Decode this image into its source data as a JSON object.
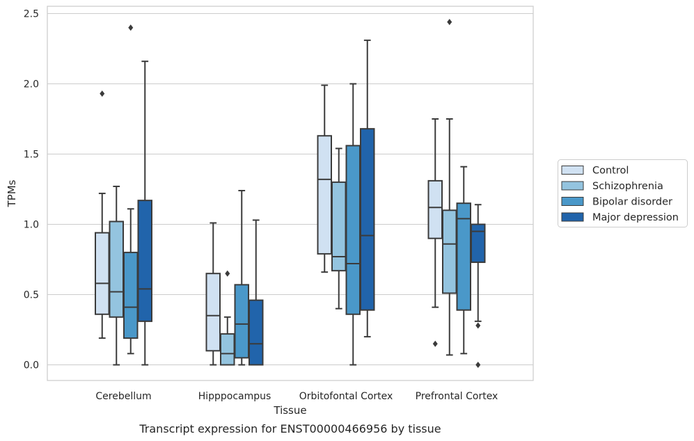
{
  "chart_data": {
    "type": "boxplot",
    "xlabel": "Tissue",
    "ylabel": "TPMs",
    "caption": "Transcript expression for ENST00000466956 by tissue",
    "ylim": [
      -0.12,
      2.57
    ],
    "yticks": [
      0.0,
      0.5,
      1.0,
      1.5,
      2.0,
      2.5
    ],
    "ytick_labels": [
      "0.0",
      "0.5",
      "1.0",
      "1.5",
      "2.0",
      "2.5"
    ],
    "grid": true,
    "legend_position": "right",
    "categories": [
      "Cerebellum",
      "Hipppocampus",
      "Orbitofontal Cortex",
      "Prefrontal Cortex"
    ],
    "series": [
      {
        "name": "Control",
        "color": "#d0e1f2",
        "boxes": [
          {
            "whislo": 0.19,
            "q1": 0.36,
            "med": 0.58,
            "q3": 0.94,
            "whishi": 1.22,
            "fliers": [
              1.93
            ]
          },
          {
            "whislo": 0.0,
            "q1": 0.1,
            "med": 0.35,
            "q3": 0.65,
            "whishi": 1.01,
            "fliers": []
          },
          {
            "whislo": 0.66,
            "q1": 0.79,
            "med": 1.32,
            "q3": 1.63,
            "whishi": 1.99,
            "fliers": []
          },
          {
            "whislo": 0.41,
            "q1": 0.9,
            "med": 1.12,
            "q3": 1.31,
            "whishi": 1.75,
            "fliers": [
              0.15
            ]
          }
        ]
      },
      {
        "name": "Schizophrenia",
        "color": "#94c4df",
        "boxes": [
          {
            "whislo": 0.0,
            "q1": 0.34,
            "med": 0.52,
            "q3": 1.02,
            "whishi": 1.27,
            "fliers": []
          },
          {
            "whislo": 0.0,
            "q1": 0.0,
            "med": 0.08,
            "q3": 0.22,
            "whishi": 0.34,
            "fliers": [
              0.65
            ]
          },
          {
            "whislo": 0.4,
            "q1": 0.67,
            "med": 0.77,
            "q3": 1.3,
            "whishi": 1.54,
            "fliers": []
          },
          {
            "whislo": 0.07,
            "q1": 0.51,
            "med": 0.86,
            "q3": 1.1,
            "whishi": 1.75,
            "fliers": [
              2.44
            ]
          }
        ]
      },
      {
        "name": "Bipolar disorder",
        "color": "#4a98c9",
        "boxes": [
          {
            "whislo": 0.08,
            "q1": 0.19,
            "med": 0.41,
            "q3": 0.8,
            "whishi": 1.11,
            "fliers": [
              2.4
            ]
          },
          {
            "whislo": 0.0,
            "q1": 0.05,
            "med": 0.29,
            "q3": 0.57,
            "whishi": 1.24,
            "fliers": []
          },
          {
            "whislo": 0.0,
            "q1": 0.36,
            "med": 0.72,
            "q3": 1.56,
            "whishi": 2.0,
            "fliers": []
          },
          {
            "whislo": 0.08,
            "q1": 0.39,
            "med": 1.04,
            "q3": 1.15,
            "whishi": 1.41,
            "fliers": []
          }
        ]
      },
      {
        "name": "Major depression",
        "color": "#2164ab",
        "boxes": [
          {
            "whislo": 0.0,
            "q1": 0.31,
            "med": 0.54,
            "q3": 1.17,
            "whishi": 2.16,
            "fliers": []
          },
          {
            "whislo": 0.0,
            "q1": 0.0,
            "med": 0.15,
            "q3": 0.46,
            "whishi": 1.03,
            "fliers": []
          },
          {
            "whislo": 0.2,
            "q1": 0.39,
            "med": 0.92,
            "q3": 1.68,
            "whishi": 2.31,
            "fliers": []
          },
          {
            "whislo": 0.31,
            "q1": 0.73,
            "med": 0.95,
            "q3": 1.0,
            "whishi": 1.14,
            "fliers": [
              0.28,
              0.0
            ]
          }
        ]
      }
    ]
  }
}
